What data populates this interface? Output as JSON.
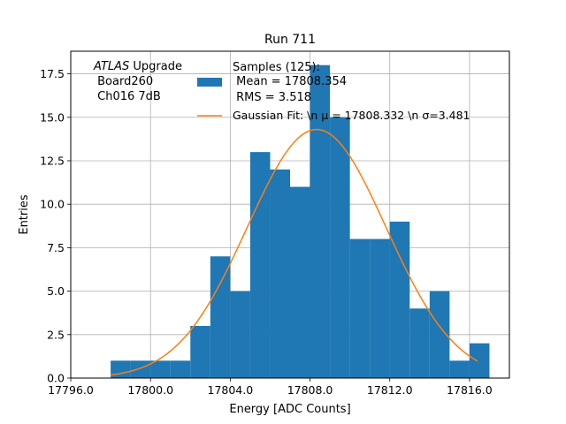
{
  "chart_data": {
    "type": "bar",
    "title": "Run 711",
    "xlabel": "Energy [ADC Counts]",
    "ylabel": "Entries",
    "xlim": [
      17796.0,
      17818.0
    ],
    "ylim": [
      0,
      18.8
    ],
    "grid": true,
    "xticks": [
      17796.0,
      17800.0,
      17804.0,
      17808.0,
      17812.0,
      17816.0
    ],
    "xtick_labels": [
      "17796.0",
      "17800.0",
      "17804.0",
      "17808.0",
      "17812.0",
      "17816.0"
    ],
    "yticks": [
      0.0,
      2.5,
      5.0,
      7.5,
      10.0,
      12.5,
      15.0,
      17.5
    ],
    "ytick_labels": [
      "0.0",
      "2.5",
      "5.0",
      "7.5",
      "10.0",
      "12.5",
      "15.0",
      "17.5"
    ],
    "histogram": {
      "name": "Samples (125):\n Mean = 17808.354\n RMS = 3.518",
      "color": "#1f77b4",
      "bin_edges": [
        17798.0,
        17799.0,
        17800.0,
        17801.0,
        17802.0,
        17803.0,
        17804.0,
        17805.0,
        17806.0,
        17807.0,
        17808.0,
        17809.0,
        17810.0,
        17811.0,
        17812.0,
        17813.0,
        17814.0,
        17815.0,
        17816.0,
        17817.0
      ],
      "counts": [
        1,
        1,
        1,
        1,
        3,
        7,
        5,
        13,
        12,
        11,
        18,
        15,
        8,
        8,
        9,
        4,
        5,
        1,
        2
      ]
    },
    "fit": {
      "name": "Gaussian Fit: \\n $\\mu$ = 17808.332 \\n $\\sigma$=3.481",
      "color": "#ff7f0e",
      "mu": 17808.332,
      "sigma": 3.481,
      "amplitude": 14.3,
      "x_range": [
        17798.0,
        17816.4
      ]
    },
    "annotation": {
      "italic_part": "ATLAS",
      "rest": " Upgrade",
      "line2": " Board260",
      "line3": " Ch016 7dB"
    },
    "legend_placement": "upper-center",
    "legend_entries": [
      {
        "lines": [
          "Samples (125):",
          " Mean = 17808.354",
          " RMS = 3.518"
        ],
        "kind": "patch",
        "color": "#1f77b4"
      },
      {
        "lines": [
          "Gaussian Fit: \\n μ = 17808.332 \\n σ=3.481"
        ],
        "kind": "line",
        "color": "#ff7f0e"
      }
    ]
  }
}
